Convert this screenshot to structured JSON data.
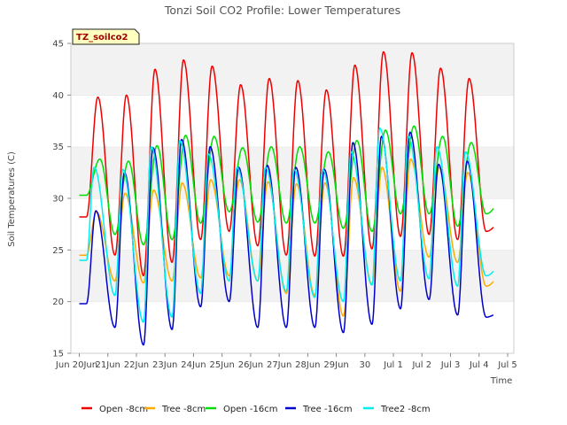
{
  "chart_data": {
    "type": "line",
    "title": "Tonzi Soil CO2 Profile: Lower Temperatures",
    "site_label": "TZ_soilco2",
    "xlabel": "Time",
    "ylabel": "Soil Temperatures (C)",
    "ylim": [
      15,
      45
    ],
    "yticks": [
      15,
      20,
      25,
      30,
      35,
      40,
      45
    ],
    "xlim": [
      "2024-06-20",
      "2024-07-05"
    ],
    "xtick_labels": [
      "Jun 20Jun",
      "21Jun",
      "22Jun",
      "23Jun",
      "24Jun",
      "25Jun",
      "26Jun",
      "27Jun",
      "28Jun",
      "29Jun",
      "30",
      "Jul 1",
      "Jul 2",
      "Jul 3",
      "Jul 4",
      "Jul 5"
    ],
    "grid": "horizontal bands",
    "legend_position": "bottom",
    "series": [
      {
        "name": "Open -8cm",
        "color": "#ee0000",
        "peak_offset": 0.65,
        "daily_min": [
          28.2,
          24.5,
          22.5,
          23.8,
          26.0,
          26.8,
          25.4,
          24.5,
          24.4,
          24.4,
          25.1,
          26.3,
          26.5,
          26.0,
          26.8,
          29.5
        ],
        "daily_max": [
          39.8,
          40.0,
          42.5,
          43.4,
          42.8,
          41.0,
          41.6,
          41.4,
          40.5,
          42.9,
          44.2,
          44.1,
          42.6,
          41.6
        ]
      },
      {
        "name": "Tree -8cm",
        "color": "#ffaa00",
        "peak_offset": 0.6,
        "daily_min": [
          24.5,
          22.0,
          21.8,
          22.0,
          22.3,
          22.5,
          22.0,
          20.8,
          20.6,
          18.6,
          21.7,
          21.0,
          24.3,
          23.8,
          21.5,
          24.5
        ],
        "daily_max": [
          28.7,
          30.5,
          30.8,
          31.5,
          31.8,
          31.8,
          31.6,
          31.4,
          31.5,
          32.0,
          33.0,
          33.8,
          33.0,
          32.5
        ]
      },
      {
        "name": "Open -16cm",
        "color": "#00dd00",
        "peak_offset": 0.72,
        "daily_min": [
          30.3,
          26.5,
          25.5,
          26.0,
          27.6,
          28.7,
          27.7,
          27.6,
          27.6,
          27.1,
          26.8,
          28.5,
          28.5,
          27.3,
          28.5,
          32.0
        ],
        "daily_max": [
          33.8,
          33.6,
          35.1,
          36.1,
          36.0,
          34.9,
          35.0,
          35.0,
          34.5,
          35.6,
          36.6,
          37.0,
          36.0,
          35.4
        ]
      },
      {
        "name": "Tree -16cm",
        "color": "#0000cc",
        "peak_offset": 0.58,
        "daily_min": [
          19.8,
          17.5,
          15.8,
          17.3,
          19.5,
          20.0,
          17.5,
          17.5,
          17.5,
          17.0,
          17.8,
          19.3,
          20.2,
          18.7,
          18.5,
          20.0
        ],
        "daily_max": [
          28.8,
          32.5,
          34.9,
          35.7,
          35.0,
          33.0,
          33.2,
          33.0,
          32.8,
          35.4,
          36.0,
          36.4,
          33.3,
          33.6
        ]
      },
      {
        "name": "Tree2 -8cm",
        "color": "#00eeee",
        "peak_offset": 0.52,
        "daily_min": [
          24.0,
          20.6,
          18.0,
          18.5,
          20.8,
          22.0,
          22.0,
          21.0,
          20.4,
          20.0,
          21.6,
          22.0,
          22.2,
          21.5,
          22.5,
          25.5
        ],
        "daily_max": [
          33.0,
          32.8,
          35.0,
          35.6,
          34.3,
          33.0,
          33.0,
          32.8,
          32.8,
          34.5,
          36.8,
          36.0,
          35.0,
          34.5
        ]
      }
    ]
  }
}
